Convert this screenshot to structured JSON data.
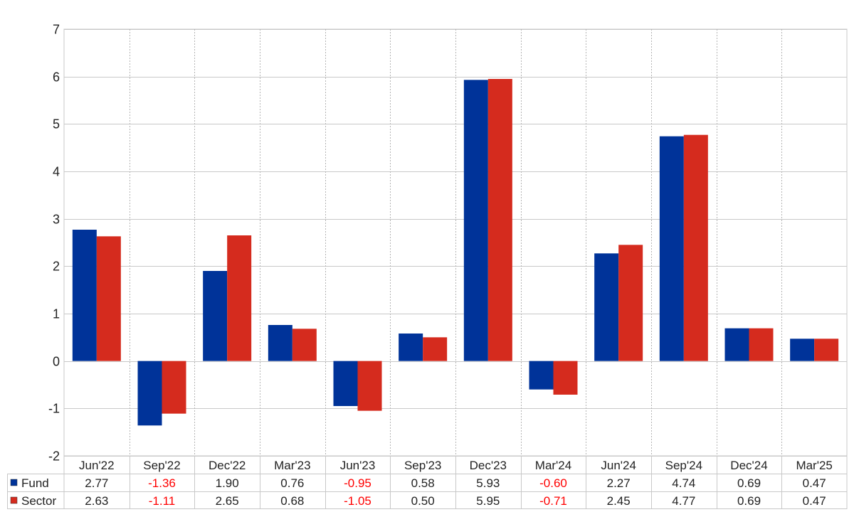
{
  "chart_data": {
    "type": "bar",
    "categories": [
      "Jun'22",
      "Sep'22",
      "Dec'22",
      "Mar'23",
      "Jun'23",
      "Sep'23",
      "Dec'23",
      "Mar'24",
      "Jun'24",
      "Sep'24",
      "Dec'24",
      "Mar'25"
    ],
    "series": [
      {
        "name": "Fund",
        "color": "#003399",
        "values": [
          2.77,
          -1.36,
          1.9,
          0.76,
          -0.95,
          0.58,
          5.93,
          -0.6,
          2.27,
          4.74,
          0.69,
          0.47
        ],
        "labels": [
          "2.77",
          "-1.36",
          "1.90",
          "0.76",
          "-0.95",
          "0.58",
          "5.93",
          "-0.60",
          "2.27",
          "4.74",
          "0.69",
          "0.47"
        ]
      },
      {
        "name": "Sector",
        "color": "#d52b1e",
        "values": [
          2.63,
          -1.11,
          2.65,
          0.68,
          -1.05,
          0.5,
          5.95,
          -0.71,
          2.45,
          4.77,
          0.69,
          0.47
        ],
        "labels": [
          "2.63",
          "-1.11",
          "2.65",
          "0.68",
          "-1.05",
          "0.50",
          "5.95",
          "-0.71",
          "2.45",
          "4.77",
          "0.69",
          "0.47"
        ]
      }
    ],
    "ylim": [
      -2,
      7
    ],
    "yticks": [
      "-2",
      "-1",
      "0",
      "1",
      "2",
      "3",
      "4",
      "5",
      "6",
      "7"
    ],
    "grid": true,
    "legend": "data-table-left",
    "negative_label_color": "#ff0000",
    "title": "",
    "xlabel": "",
    "ylabel": ""
  }
}
